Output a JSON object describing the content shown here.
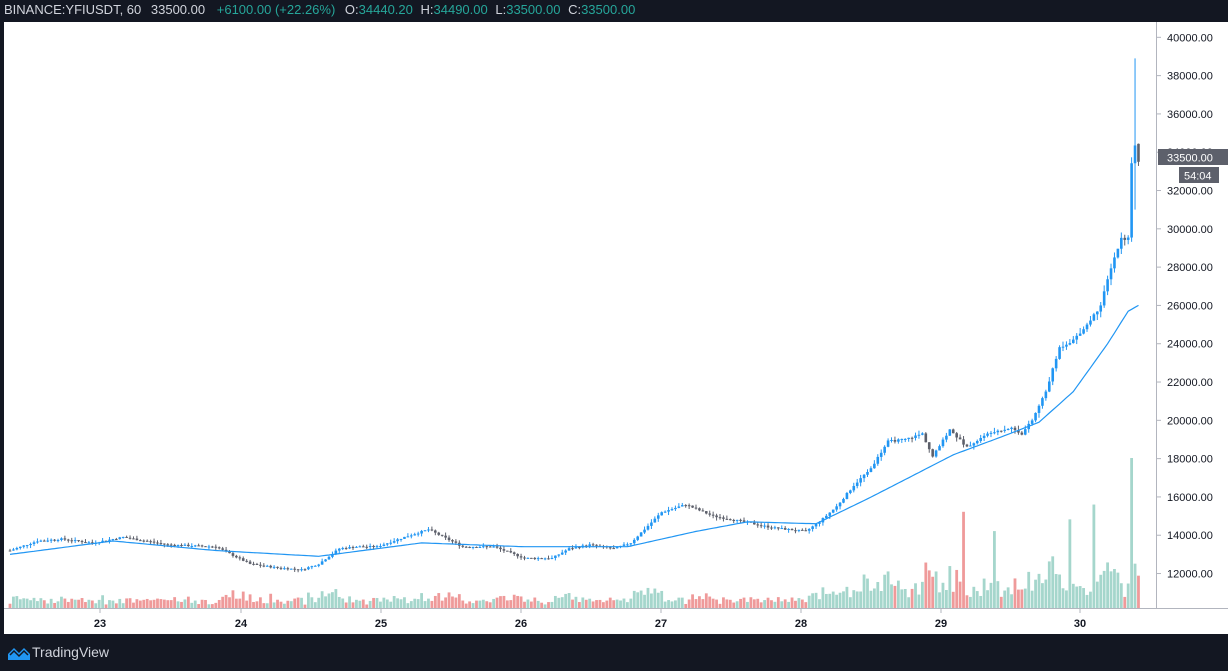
{
  "header": {
    "symbol": "BINANCE:YFIUSDT, 60",
    "last": "33500.00",
    "change": "+6100.00 (+22.26%)",
    "open_label": "O:",
    "open": "34440.20",
    "high_label": "H:",
    "high": "34490.00",
    "low_label": "L:",
    "low": "33500.00",
    "close_label": "C:",
    "close": "33500.00"
  },
  "price_axis": {
    "last_price_label": "33500.00",
    "countdown": "54:04"
  },
  "footer": {
    "brand": "TradingView"
  },
  "colors": {
    "up": "#2196f3",
    "down": "#5d606b",
    "ma": "#2196f3",
    "vol_up": "#a5d6cc",
    "vol_down": "#ef9a9a",
    "header_green": "#26a69a"
  },
  "chart_data": {
    "type": "candlestick",
    "symbol": "BINANCE:YFIUSDT",
    "interval": "60",
    "x_ticks": [
      "23",
      "24",
      "25",
      "26",
      "27",
      "28",
      "29",
      "30"
    ],
    "y_ticks": [
      "12000.00",
      "14000.00",
      "16000.00",
      "18000.00",
      "20000.00",
      "22000.00",
      "24000.00",
      "26000.00",
      "28000.00",
      "30000.00",
      "32000.00",
      "34000.00",
      "36000.00",
      "38000.00",
      "40000.00"
    ],
    "ylim": [
      10200,
      40800
    ],
    "candle_anchors": [
      [
        0,
        13200
      ],
      [
        8,
        13700
      ],
      [
        15,
        13800
      ],
      [
        24,
        13600
      ],
      [
        33,
        13900
      ],
      [
        46,
        13500
      ],
      [
        60,
        13400
      ],
      [
        70,
        12500
      ],
      [
        78,
        12300
      ],
      [
        85,
        12200
      ],
      [
        90,
        12500
      ],
      [
        96,
        13300
      ],
      [
        101,
        13400
      ],
      [
        107,
        13400
      ],
      [
        115,
        13900
      ],
      [
        122,
        14300
      ],
      [
        132,
        13400
      ],
      [
        141,
        13400
      ],
      [
        150,
        12800
      ],
      [
        158,
        12800
      ],
      [
        163,
        13300
      ],
      [
        169,
        13500
      ],
      [
        176,
        13300
      ],
      [
        181,
        13600
      ],
      [
        190,
        15200
      ],
      [
        197,
        15600
      ],
      [
        205,
        15000
      ],
      [
        214,
        14700
      ],
      [
        222,
        14400
      ],
      [
        232,
        14200
      ],
      [
        236,
        14700
      ],
      [
        241,
        15500
      ],
      [
        246,
        16600
      ],
      [
        251,
        17500
      ],
      [
        256,
        18900
      ],
      [
        261,
        19000
      ],
      [
        266,
        19300
      ],
      [
        269,
        18100
      ],
      [
        274,
        19500
      ],
      [
        279,
        18600
      ],
      [
        286,
        19400
      ],
      [
        292,
        19600
      ],
      [
        295,
        19300
      ],
      [
        298,
        20000
      ],
      [
        302,
        21500
      ],
      [
        306,
        23800
      ],
      [
        310,
        24200
      ],
      [
        314,
        25000
      ],
      [
        318,
        26000
      ],
      [
        321,
        28000
      ],
      [
        324,
        29500
      ],
      [
        326,
        29500
      ],
      [
        327,
        33500
      ],
      [
        328,
        34440
      ],
      [
        329,
        33500
      ]
    ],
    "ma_anchors": [
      [
        0,
        13000
      ],
      [
        30,
        13700
      ],
      [
        60,
        13200
      ],
      [
        90,
        12900
      ],
      [
        120,
        13600
      ],
      [
        150,
        13400
      ],
      [
        180,
        13400
      ],
      [
        200,
        14200
      ],
      [
        215,
        14700
      ],
      [
        235,
        14600
      ],
      [
        250,
        15900
      ],
      [
        262,
        17000
      ],
      [
        275,
        18200
      ],
      [
        290,
        19200
      ],
      [
        300,
        19900
      ],
      [
        310,
        21500
      ],
      [
        320,
        24000
      ],
      [
        326,
        25700
      ],
      [
        329,
        26000
      ]
    ],
    "candle_count": 330,
    "volume_note": "histogram at bottom, colored by candle direction"
  }
}
